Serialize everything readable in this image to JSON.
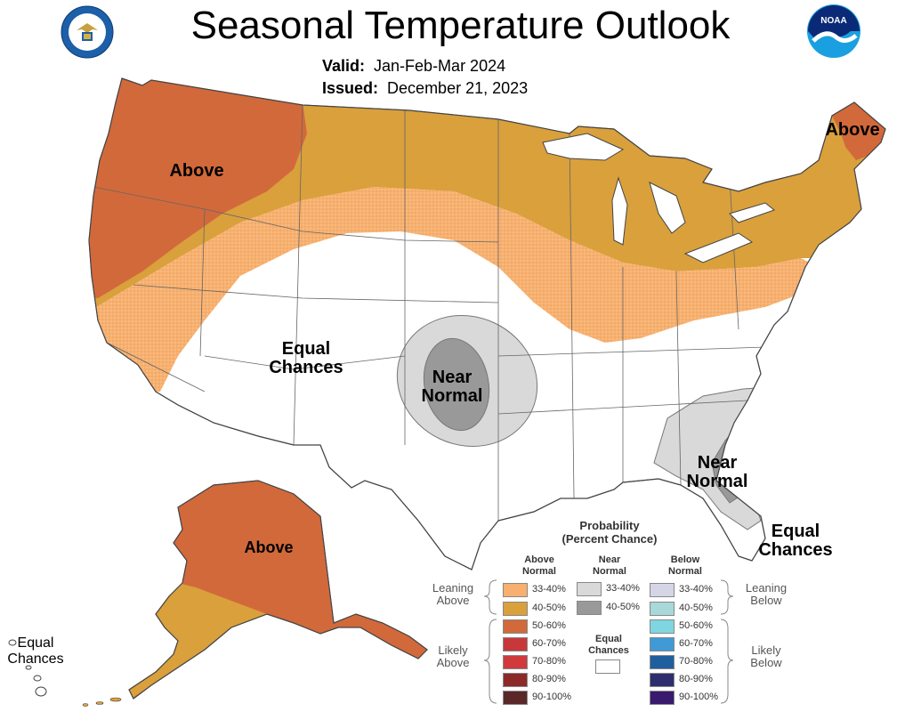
{
  "header": {
    "title": "Seasonal Temperature Outlook",
    "valid_label": "Valid:",
    "valid_value": "Jan-Feb-Mar 2024",
    "issued_label": "Issued:",
    "issued_value": "December 21, 2023"
  },
  "logos": {
    "left": "department-of-commerce-seal",
    "right": "noaa-logo",
    "right_text": "NOAA"
  },
  "map_labels": {
    "above_west": "Above",
    "above_northeast": "Above",
    "above_alaska": "Above",
    "equal_chances_west": [
      "Equal",
      "Chances"
    ],
    "near_normal_plains": [
      "Near",
      "Normal"
    ],
    "near_normal_southeast": [
      "Near",
      "Normal"
    ],
    "equal_chances_florida": [
      "Equal",
      "Chances"
    ],
    "equal_chances_hawaii": [
      "Equal",
      "Chances"
    ]
  },
  "legend": {
    "title_line1": "Probability",
    "title_line2": "(Percent Chance)",
    "col_above": [
      "Above",
      "Normal"
    ],
    "col_near": [
      "Near",
      "Normal"
    ],
    "col_below": [
      "Below",
      "Normal"
    ],
    "left_group_leaning": [
      "Leaning",
      "Above"
    ],
    "left_group_likely": [
      "Likely",
      "Above"
    ],
    "right_group_leaning": [
      "Leaning",
      "Below"
    ],
    "right_group_likely": [
      "Likely",
      "Below"
    ],
    "equal_chances": [
      "Equal",
      "Chances"
    ],
    "above": [
      {
        "range": "33-40%",
        "color": "#f7b06f"
      },
      {
        "range": "40-50%",
        "color": "#d9a03c"
      },
      {
        "range": "50-60%",
        "color": "#d2693b"
      },
      {
        "range": "60-70%",
        "color": "#c8383a"
      },
      {
        "range": "70-80%",
        "color": "#d03a3c"
      },
      {
        "range": "80-90%",
        "color": "#8c2a2a"
      },
      {
        "range": "90-100%",
        "color": "#5a2828"
      }
    ],
    "near": [
      {
        "range": "33-40%",
        "color": "#d9d9d9"
      },
      {
        "range": "40-50%",
        "color": "#999999"
      }
    ],
    "below": [
      {
        "range": "33-40%",
        "color": "#d5d5e6"
      },
      {
        "range": "40-50%",
        "color": "#a8d8d8"
      },
      {
        "range": "50-60%",
        "color": "#7fd6e0"
      },
      {
        "range": "60-70%",
        "color": "#3f9ad6"
      },
      {
        "range": "70-80%",
        "color": "#1f5f9e"
      },
      {
        "range": "80-90%",
        "color": "#2e2e6e"
      },
      {
        "range": "90-100%",
        "color": "#3a1a6e"
      }
    ]
  },
  "colors": {
    "above_33_40": "#f7b06f",
    "above_40_50": "#d9a03c",
    "above_50_60": "#d2693b",
    "near_33_40": "#d9d9d9",
    "near_40_50": "#999999",
    "boundary": "#444444"
  }
}
